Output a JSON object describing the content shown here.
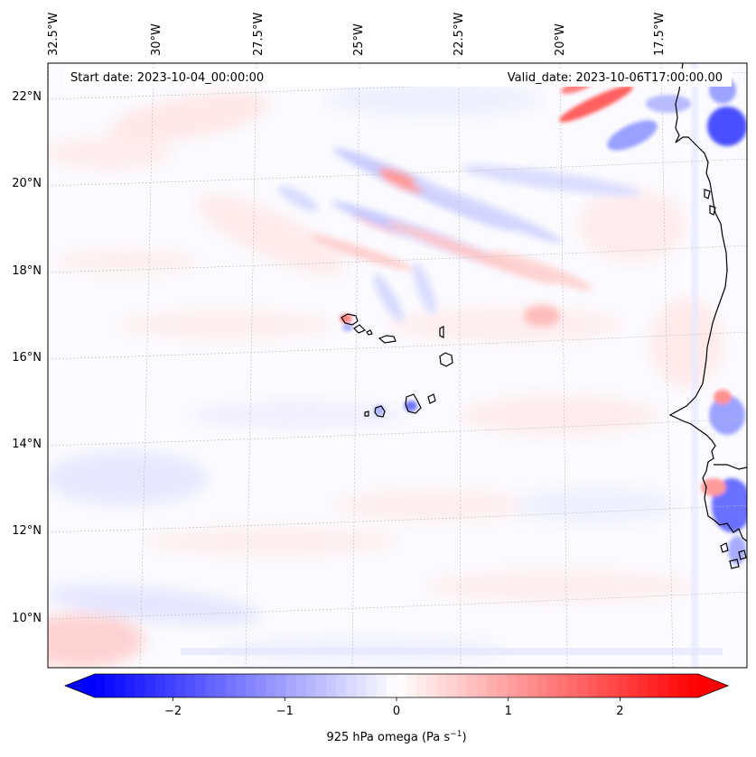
{
  "map": {
    "start_label": "Start date: 2023-10-04_00:00:00",
    "valid_label": "Valid_date: 2023-10-06T17:00:00.00",
    "lon_labels": [
      "32.5°W",
      "30°W",
      "27.5°W",
      "25°W",
      "22.5°W",
      "20°W",
      "17.5°W"
    ],
    "lat_labels": [
      "22°N",
      "20°N",
      "18°N",
      "16°N",
      "14°N",
      "12°N",
      "10°N"
    ],
    "field": "925 hPa omega",
    "colormap": "bwr",
    "colors": {
      "negative": "#0000ff",
      "zero": "#ffffff",
      "positive": "#ff0000",
      "coast": "#000000",
      "grid": "#b0b0b0"
    }
  },
  "colorbar": {
    "label_prefix": "925 hPa omega (Pa s",
    "label_exp": "−1",
    "label_suffix": ")",
    "min": -2.7,
    "max": 2.7,
    "levels": 60,
    "ticks": [
      {
        "value": -2,
        "label": "−2"
      },
      {
        "value": -1,
        "label": "−1"
      },
      {
        "value": 0,
        "label": "0"
      },
      {
        "value": 1,
        "label": "1"
      },
      {
        "value": 2,
        "label": "2"
      }
    ]
  }
}
